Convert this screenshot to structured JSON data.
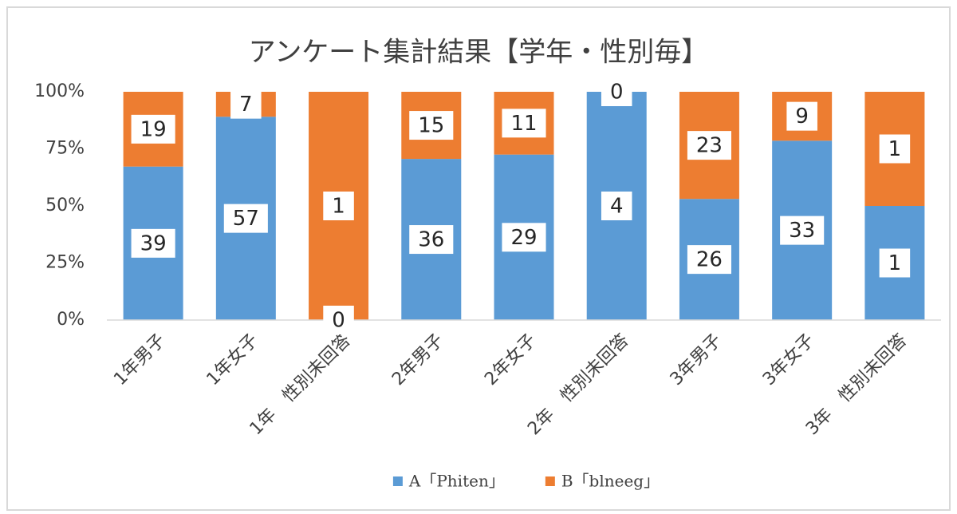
{
  "chart_data": {
    "type": "bar",
    "stacked": "percent",
    "title": "アンケート集計結果【学年・性別毎】",
    "categories": [
      "1年男子",
      "1年女子",
      "1年　性別未回答",
      "2年男子",
      "2年女子",
      "2年　性別未回答",
      "3年男子",
      "3年女子",
      "3年　性別未回答"
    ],
    "series": [
      {
        "name": "A「Phiten」",
        "color": "#5b9bd5",
        "values": [
          39,
          57,
          0,
          36,
          29,
          4,
          26,
          33,
          1
        ]
      },
      {
        "name": "B「blneeg」",
        "color": "#ed7d31",
        "values": [
          19,
          7,
          1,
          15,
          11,
          0,
          23,
          9,
          1
        ]
      }
    ],
    "ylim": [
      0,
      100
    ],
    "yticks": [
      {
        "value": 0,
        "label": "0%"
      },
      {
        "value": 25,
        "label": "25%"
      },
      {
        "value": 50,
        "label": "50%"
      },
      {
        "value": 75,
        "label": "75%"
      },
      {
        "value": 100,
        "label": "100%"
      }
    ],
    "grid": false,
    "legend": "bottom"
  }
}
